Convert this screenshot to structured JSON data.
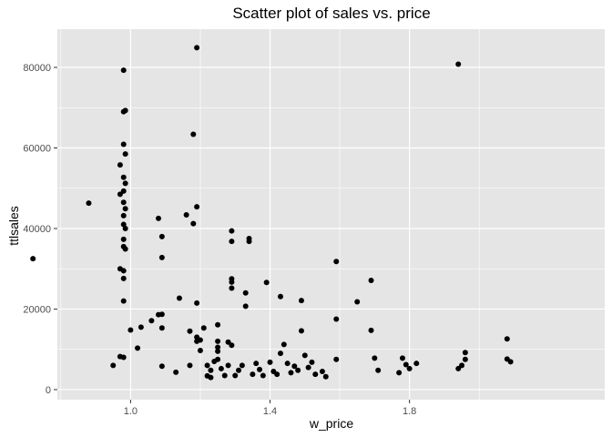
{
  "chart_data": {
    "type": "scatter",
    "title": "Scatter plot of sales vs. price",
    "xlabel": "w_price",
    "ylabel": "ttlsales",
    "xlim": [
      0.79,
      2.36
    ],
    "ylim": [
      -2500,
      89500
    ],
    "xticks": [
      1.0,
      1.4,
      1.8
    ],
    "xtick_labels": [
      "1.0",
      "1.4",
      "1.8"
    ],
    "yticks": [
      0,
      20000,
      40000,
      60000,
      80000
    ],
    "ytick_labels": [
      "0",
      "20000",
      "40000",
      "60000",
      "80000"
    ],
    "grid": true,
    "colors": {
      "panel": "#e5e5e5",
      "grid": "#ffffff",
      "point": "#000000"
    },
    "points": [
      {
        "x": 0.72,
        "y": 32500
      },
      {
        "x": 0.88,
        "y": 46300
      },
      {
        "x": 0.95,
        "y": 6000
      },
      {
        "x": 0.97,
        "y": 8200
      },
      {
        "x": 0.97,
        "y": 48500
      },
      {
        "x": 0.97,
        "y": 55800
      },
      {
        "x": 0.98,
        "y": 79300
      },
      {
        "x": 0.98,
        "y": 69000
      },
      {
        "x": 0.985,
        "y": 69300
      },
      {
        "x": 0.98,
        "y": 60900
      },
      {
        "x": 0.985,
        "y": 58500
      },
      {
        "x": 0.98,
        "y": 52700
      },
      {
        "x": 0.985,
        "y": 51200
      },
      {
        "x": 0.98,
        "y": 49300
      },
      {
        "x": 0.98,
        "y": 46500
      },
      {
        "x": 0.985,
        "y": 44900
      },
      {
        "x": 0.98,
        "y": 43200
      },
      {
        "x": 0.98,
        "y": 41000
      },
      {
        "x": 0.985,
        "y": 40000
      },
      {
        "x": 0.98,
        "y": 37300
      },
      {
        "x": 0.98,
        "y": 35500
      },
      {
        "x": 0.985,
        "y": 34900
      },
      {
        "x": 0.97,
        "y": 30000
      },
      {
        "x": 0.98,
        "y": 29500
      },
      {
        "x": 0.98,
        "y": 27600
      },
      {
        "x": 0.98,
        "y": 22000
      },
      {
        "x": 0.98,
        "y": 8000
      },
      {
        "x": 1.0,
        "y": 14800
      },
      {
        "x": 1.02,
        "y": 10300
      },
      {
        "x": 1.03,
        "y": 15500
      },
      {
        "x": 1.06,
        "y": 17100
      },
      {
        "x": 1.08,
        "y": 18600
      },
      {
        "x": 1.09,
        "y": 18700
      },
      {
        "x": 1.08,
        "y": 42500
      },
      {
        "x": 1.09,
        "y": 38000
      },
      {
        "x": 1.09,
        "y": 32800
      },
      {
        "x": 1.09,
        "y": 15300
      },
      {
        "x": 1.09,
        "y": 5800
      },
      {
        "x": 1.13,
        "y": 4300
      },
      {
        "x": 1.14,
        "y": 22700
      },
      {
        "x": 1.16,
        "y": 43400
      },
      {
        "x": 1.17,
        "y": 6000
      },
      {
        "x": 1.17,
        "y": 14500
      },
      {
        "x": 1.18,
        "y": 63400
      },
      {
        "x": 1.19,
        "y": 84900
      },
      {
        "x": 1.19,
        "y": 45400
      },
      {
        "x": 1.18,
        "y": 41200
      },
      {
        "x": 1.19,
        "y": 21500
      },
      {
        "x": 1.19,
        "y": 13000
      },
      {
        "x": 1.19,
        "y": 12000
      },
      {
        "x": 1.2,
        "y": 12300
      },
      {
        "x": 1.2,
        "y": 9700
      },
      {
        "x": 1.21,
        "y": 15300
      },
      {
        "x": 1.22,
        "y": 3400
      },
      {
        "x": 1.22,
        "y": 6000
      },
      {
        "x": 1.23,
        "y": 4800
      },
      {
        "x": 1.23,
        "y": 3000
      },
      {
        "x": 1.24,
        "y": 7000
      },
      {
        "x": 1.25,
        "y": 16100
      },
      {
        "x": 1.25,
        "y": 12000
      },
      {
        "x": 1.25,
        "y": 10500
      },
      {
        "x": 1.25,
        "y": 9500
      },
      {
        "x": 1.25,
        "y": 7500
      },
      {
        "x": 1.26,
        "y": 5200
      },
      {
        "x": 1.27,
        "y": 3500
      },
      {
        "x": 1.28,
        "y": 6000
      },
      {
        "x": 1.28,
        "y": 11800
      },
      {
        "x": 1.29,
        "y": 27500
      },
      {
        "x": 1.29,
        "y": 39400
      },
      {
        "x": 1.29,
        "y": 36800
      },
      {
        "x": 1.29,
        "y": 26700
      },
      {
        "x": 1.29,
        "y": 25200
      },
      {
        "x": 1.29,
        "y": 11000
      },
      {
        "x": 1.3,
        "y": 3500
      },
      {
        "x": 1.31,
        "y": 4800
      },
      {
        "x": 1.32,
        "y": 6000
      },
      {
        "x": 1.33,
        "y": 20700
      },
      {
        "x": 1.33,
        "y": 24000
      },
      {
        "x": 1.34,
        "y": 37500
      },
      {
        "x": 1.34,
        "y": 36800
      },
      {
        "x": 1.35,
        "y": 3800
      },
      {
        "x": 1.36,
        "y": 6500
      },
      {
        "x": 1.37,
        "y": 5000
      },
      {
        "x": 1.38,
        "y": 3500
      },
      {
        "x": 1.39,
        "y": 26600
      },
      {
        "x": 1.4,
        "y": 6800
      },
      {
        "x": 1.41,
        "y": 4500
      },
      {
        "x": 1.42,
        "y": 3800
      },
      {
        "x": 1.43,
        "y": 9000
      },
      {
        "x": 1.43,
        "y": 23100
      },
      {
        "x": 1.44,
        "y": 11200
      },
      {
        "x": 1.45,
        "y": 6500
      },
      {
        "x": 1.46,
        "y": 4200
      },
      {
        "x": 1.47,
        "y": 5800
      },
      {
        "x": 1.48,
        "y": 4800
      },
      {
        "x": 1.49,
        "y": 22100
      },
      {
        "x": 1.49,
        "y": 14600
      },
      {
        "x": 1.5,
        "y": 8500
      },
      {
        "x": 1.51,
        "y": 5500
      },
      {
        "x": 1.52,
        "y": 6800
      },
      {
        "x": 1.53,
        "y": 3800
      },
      {
        "x": 1.55,
        "y": 4500
      },
      {
        "x": 1.56,
        "y": 3200
      },
      {
        "x": 1.59,
        "y": 31800
      },
      {
        "x": 1.59,
        "y": 17500
      },
      {
        "x": 1.59,
        "y": 7500
      },
      {
        "x": 1.65,
        "y": 21800
      },
      {
        "x": 1.69,
        "y": 27100
      },
      {
        "x": 1.69,
        "y": 14700
      },
      {
        "x": 1.7,
        "y": 7800
      },
      {
        "x": 1.71,
        "y": 4800
      },
      {
        "x": 1.77,
        "y": 4200
      },
      {
        "x": 1.78,
        "y": 7800
      },
      {
        "x": 1.79,
        "y": 6200
      },
      {
        "x": 1.8,
        "y": 5200
      },
      {
        "x": 1.82,
        "y": 6500
      },
      {
        "x": 1.94,
        "y": 80800
      },
      {
        "x": 1.94,
        "y": 5200
      },
      {
        "x": 1.95,
        "y": 6000
      },
      {
        "x": 1.96,
        "y": 9200
      },
      {
        "x": 1.96,
        "y": 7500
      },
      {
        "x": 2.08,
        "y": 12600
      },
      {
        "x": 2.08,
        "y": 7600
      },
      {
        "x": 2.09,
        "y": 6900
      }
    ]
  }
}
